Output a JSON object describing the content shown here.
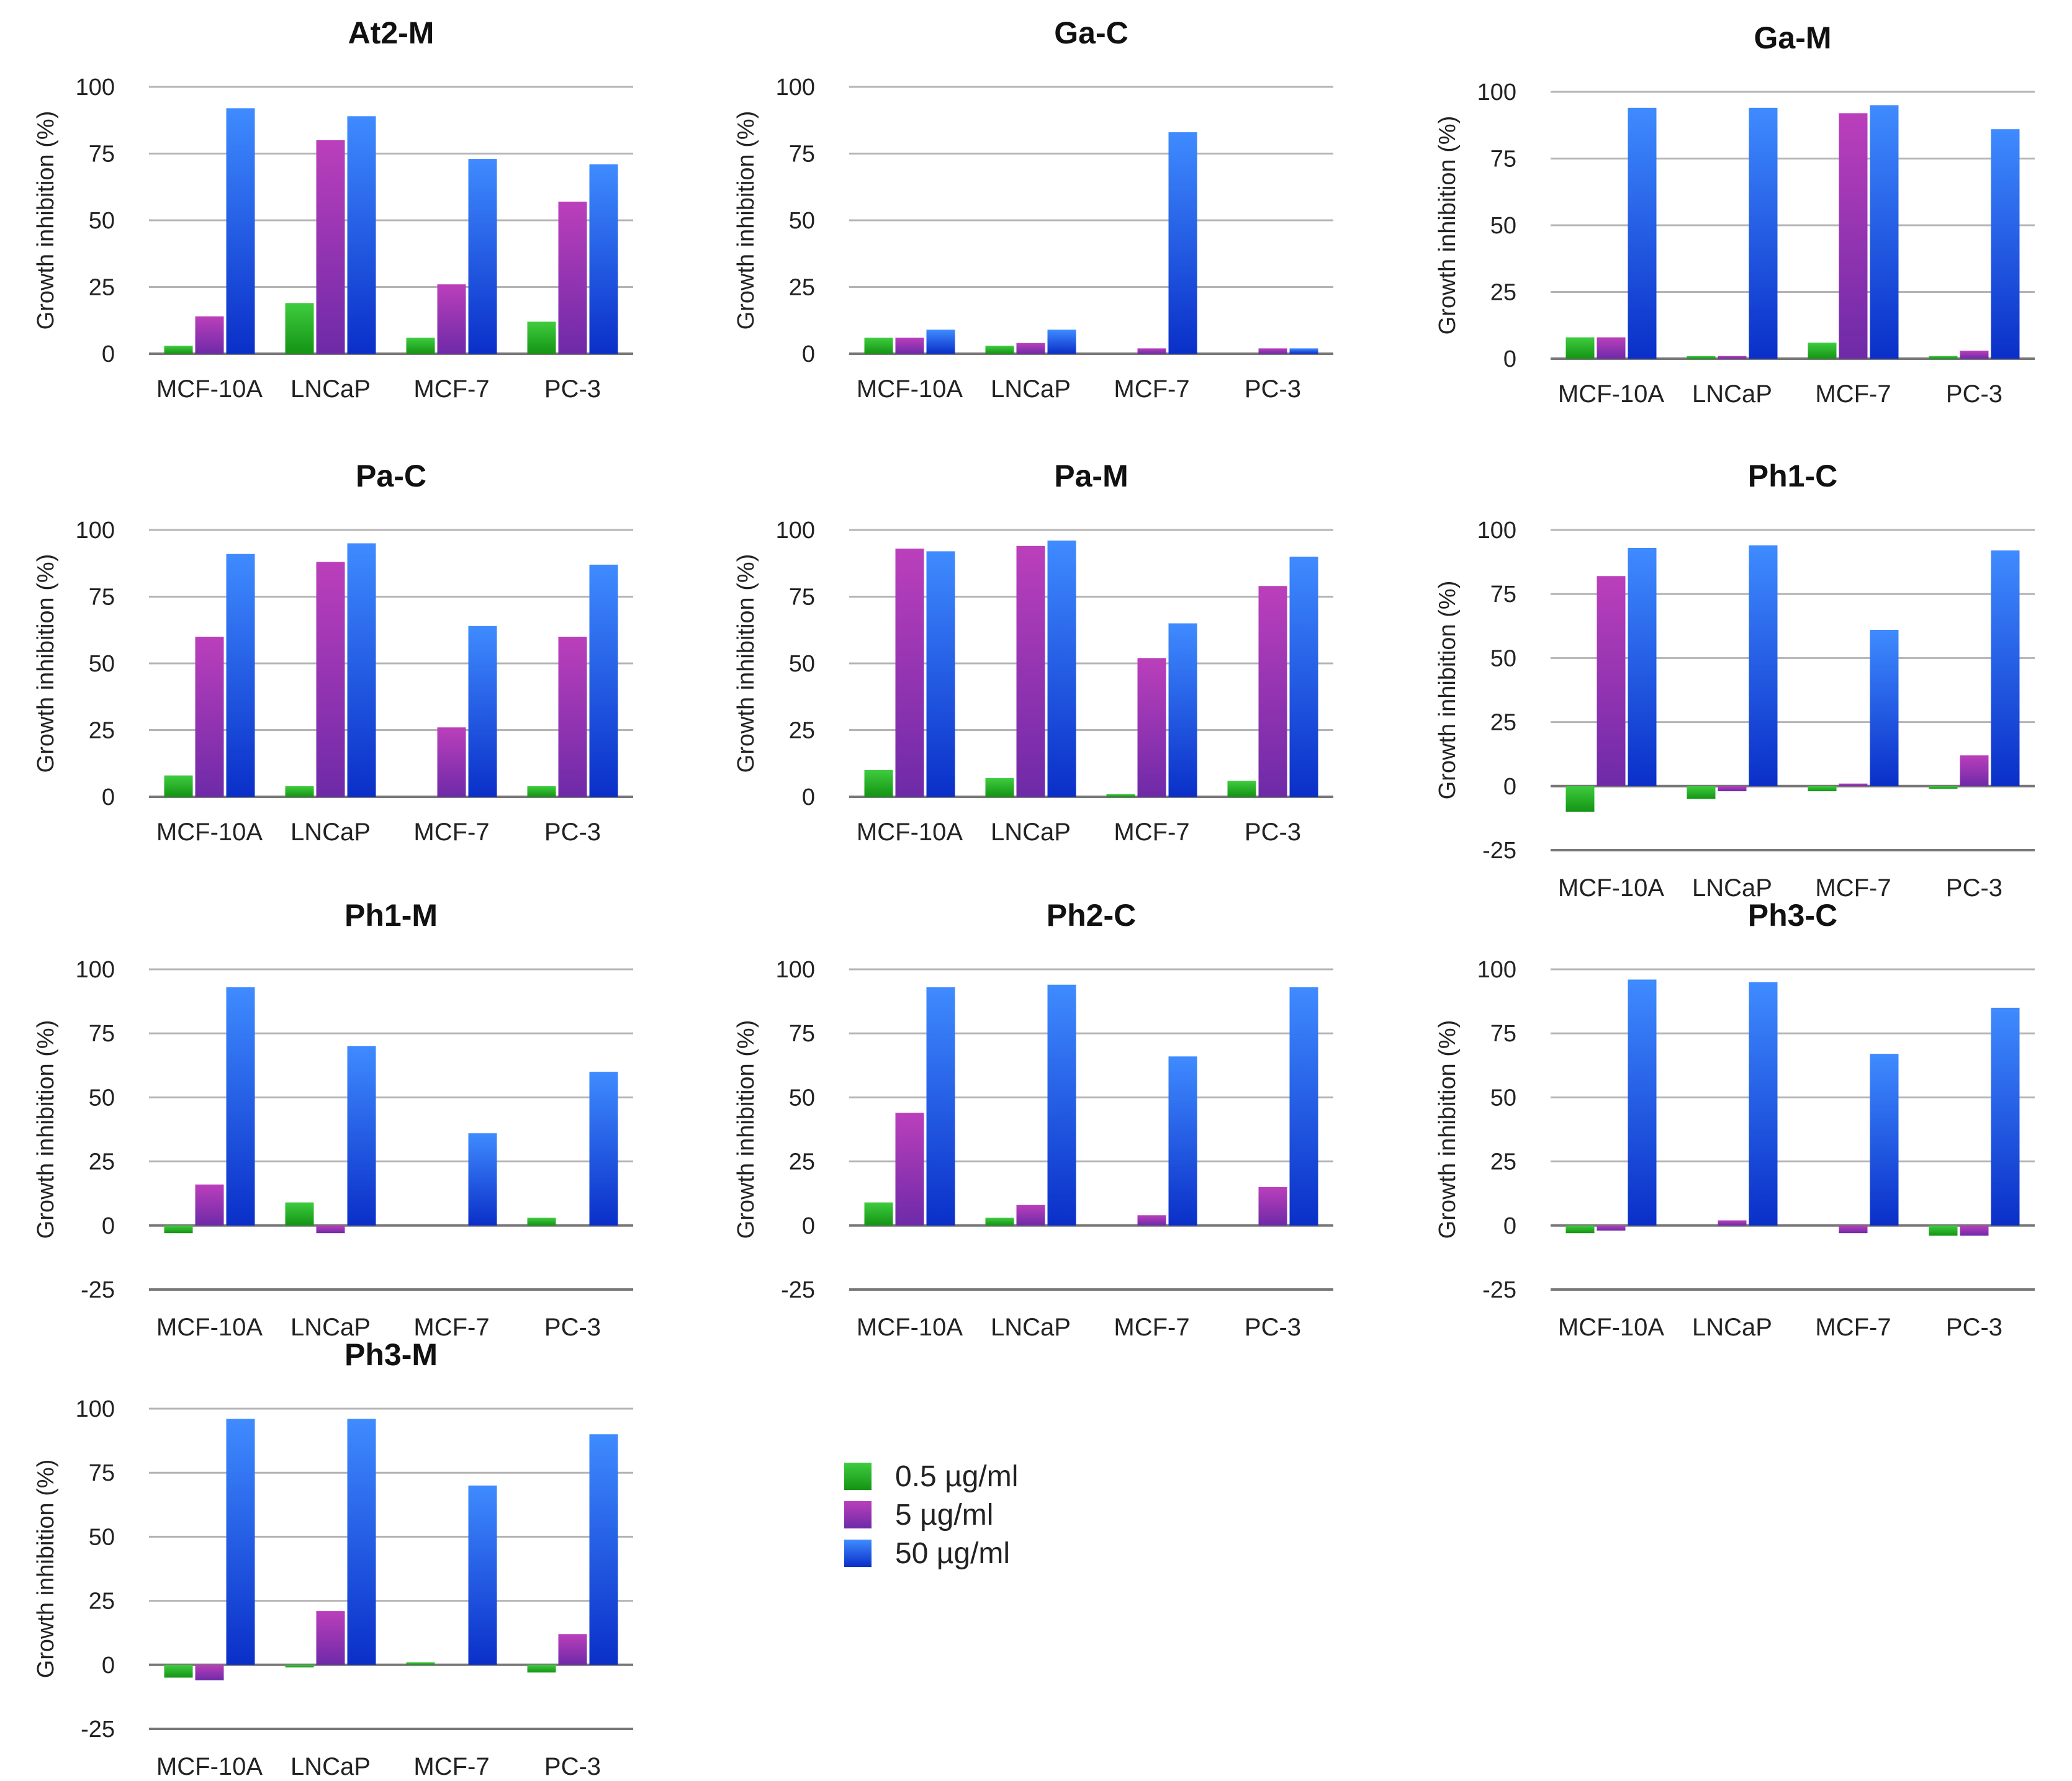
{
  "y_axis_label": "Growth inhibition (%)",
  "series_names": [
    "0.5 µg/ml",
    "5 µg/ml",
    "50 µg/ml"
  ],
  "series_colors": {
    "0.5 µg/ml": [
      "#3fcc3f",
      "#149414"
    ],
    "5 µg/ml": [
      "#bb3fbb",
      "#6e2aa8"
    ],
    "50 µg/ml": [
      "#3f8bff",
      "#0a2fc8"
    ]
  },
  "legend": [
    {
      "label": "0.5 µg/ml",
      "color": "#2cb82c"
    },
    {
      "label": "5 µg/ml",
      "color": "#9a38b2"
    },
    {
      "label": "50 µg/ml",
      "color": "#1e5fec"
    }
  ],
  "chart_data": [
    {
      "type": "bar",
      "title": "At2-M",
      "ylabel": "Growth inhibition (%)",
      "ylim": [
        0,
        100
      ],
      "yticks": [
        0,
        25,
        50,
        75,
        100
      ],
      "categories": [
        "MCF-10A",
        "LNCaP",
        "MCF-7",
        "PC-3"
      ],
      "series": [
        {
          "name": "0.5 µg/ml",
          "values": [
            3,
            19,
            6,
            12
          ]
        },
        {
          "name": "5 µg/ml",
          "values": [
            14,
            80,
            26,
            57
          ]
        },
        {
          "name": "50 µg/ml",
          "values": [
            92,
            89,
            73,
            71
          ]
        }
      ]
    },
    {
      "type": "bar",
      "title": "Ga-C",
      "ylabel": "Growth inhibition (%)",
      "ylim": [
        0,
        100
      ],
      "yticks": [
        0,
        25,
        50,
        75,
        100
      ],
      "categories": [
        "MCF-10A",
        "LNCaP",
        "MCF-7",
        "PC-3"
      ],
      "series": [
        {
          "name": "0.5 µg/ml",
          "values": [
            6,
            3,
            0,
            0
          ]
        },
        {
          "name": "5 µg/ml",
          "values": [
            6,
            4,
            2,
            2
          ]
        },
        {
          "name": "50 µg/ml",
          "values": [
            9,
            9,
            83,
            2
          ]
        }
      ]
    },
    {
      "type": "bar",
      "title": "Ga-M",
      "ylabel": "Growth inhibition (%)",
      "ylim": [
        0,
        100
      ],
      "yticks": [
        0,
        25,
        50,
        75,
        100
      ],
      "categories": [
        "MCF-10A",
        "LNCaP",
        "MCF-7",
        "PC-3"
      ],
      "series": [
        {
          "name": "0.5 µg/ml",
          "values": [
            8,
            1,
            6,
            1
          ]
        },
        {
          "name": "5 µg/ml",
          "values": [
            8,
            1,
            92,
            3
          ]
        },
        {
          "name": "50 µg/ml",
          "values": [
            94,
            94,
            95,
            86
          ]
        }
      ]
    },
    {
      "type": "bar",
      "title": "Pa-C",
      "ylabel": "Growth inhibition (%)",
      "ylim": [
        0,
        100
      ],
      "yticks": [
        0,
        25,
        50,
        75,
        100
      ],
      "categories": [
        "MCF-10A",
        "LNCaP",
        "MCF-7",
        "PC-3"
      ],
      "series": [
        {
          "name": "0.5 µg/ml",
          "values": [
            8,
            4,
            0,
            4
          ]
        },
        {
          "name": "5 µg/ml",
          "values": [
            60,
            88,
            26,
            60
          ]
        },
        {
          "name": "50 µg/ml",
          "values": [
            91,
            95,
            64,
            87
          ]
        }
      ]
    },
    {
      "type": "bar",
      "title": "Pa-M",
      "ylabel": "Growth inhibition (%)",
      "ylim": [
        0,
        100
      ],
      "yticks": [
        0,
        25,
        50,
        75,
        100
      ],
      "categories": [
        "MCF-10A",
        "LNCaP",
        "MCF-7",
        "PC-3"
      ],
      "series": [
        {
          "name": "0.5 µg/ml",
          "values": [
            10,
            7,
            1,
            6
          ]
        },
        {
          "name": "5 µg/ml",
          "values": [
            93,
            94,
            52,
            79
          ]
        },
        {
          "name": "50 µg/ml",
          "values": [
            92,
            96,
            65,
            90
          ]
        }
      ]
    },
    {
      "type": "bar",
      "title": "Ph1-C",
      "ylabel": "Growth inhibition (%)",
      "ylim": [
        -25,
        100
      ],
      "yticks": [
        -25,
        0,
        25,
        50,
        75,
        100
      ],
      "categories": [
        "MCF-10A",
        "LNCaP",
        "MCF-7",
        "PC-3"
      ],
      "series": [
        {
          "name": "0.5 µg/ml",
          "values": [
            -10,
            -5,
            -2,
            -1
          ]
        },
        {
          "name": "5 µg/ml",
          "values": [
            82,
            -2,
            1,
            12
          ]
        },
        {
          "name": "50 µg/ml",
          "values": [
            93,
            94,
            61,
            92
          ]
        }
      ]
    },
    {
      "type": "bar",
      "title": "Ph1-M",
      "ylabel": "Growth inhibition (%)",
      "ylim": [
        -25,
        100
      ],
      "yticks": [
        -25,
        0,
        25,
        50,
        75,
        100
      ],
      "categories": [
        "MCF-10A",
        "LNCaP",
        "MCF-7",
        "PC-3"
      ],
      "series": [
        {
          "name": "0.5 µg/ml",
          "values": [
            -3,
            9,
            0,
            3
          ]
        },
        {
          "name": "5 µg/ml",
          "values": [
            16,
            -3,
            0,
            0
          ]
        },
        {
          "name": "50 µg/ml",
          "values": [
            93,
            70,
            36,
            60
          ]
        }
      ]
    },
    {
      "type": "bar",
      "title": "Ph2-C",
      "ylabel": "Growth inhibition (%)",
      "ylim": [
        -25,
        100
      ],
      "yticks": [
        -25,
        0,
        25,
        50,
        75,
        100
      ],
      "categories": [
        "MCF-10A",
        "LNCaP",
        "MCF-7",
        "PC-3"
      ],
      "series": [
        {
          "name": "0.5 µg/ml",
          "values": [
            9,
            3,
            0,
            0
          ]
        },
        {
          "name": "5 µg/ml",
          "values": [
            44,
            8,
            4,
            15
          ]
        },
        {
          "name": "50 µg/ml",
          "values": [
            93,
            94,
            66,
            93
          ]
        }
      ]
    },
    {
      "type": "bar",
      "title": "Ph3-C",
      "ylabel": "Growth inhibition (%)",
      "ylim": [
        -25,
        100
      ],
      "yticks": [
        -25,
        0,
        25,
        50,
        75,
        100
      ],
      "categories": [
        "MCF-10A",
        "LNCaP",
        "MCF-7",
        "PC-3"
      ],
      "series": [
        {
          "name": "0.5 µg/ml",
          "values": [
            -3,
            0,
            0,
            -4
          ]
        },
        {
          "name": "5 µg/ml",
          "values": [
            -2,
            2,
            -3,
            -4
          ]
        },
        {
          "name": "50 µg/ml",
          "values": [
            96,
            95,
            67,
            85
          ]
        }
      ]
    },
    {
      "type": "bar",
      "title": "Ph3-M",
      "ylabel": "Growth inhibition (%)",
      "ylim": [
        -25,
        100
      ],
      "yticks": [
        -25,
        0,
        25,
        50,
        75,
        100
      ],
      "categories": [
        "MCF-10A",
        "LNCaP",
        "MCF-7",
        "PC-3"
      ],
      "series": [
        {
          "name": "0.5 µg/ml",
          "values": [
            -5,
            -1,
            1,
            -3
          ]
        },
        {
          "name": "5 µg/ml",
          "values": [
            -6,
            21,
            0,
            12
          ]
        },
        {
          "name": "50 µg/ml",
          "values": [
            96,
            96,
            70,
            90
          ]
        }
      ]
    }
  ]
}
